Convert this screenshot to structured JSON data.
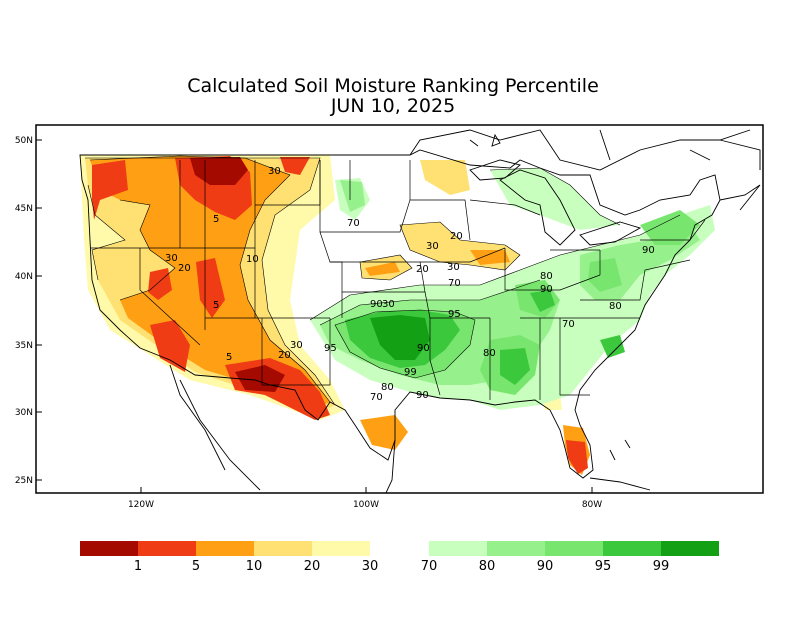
{
  "title_line1": "Calculated Soil Moisture Ranking Percentile",
  "title_line2": "JUN 10, 2025",
  "lat_ticks": [
    "50N",
    "45N",
    "40N",
    "35N",
    "30N",
    "25N"
  ],
  "lon_ticks": [
    "120W",
    "100W",
    "80W"
  ],
  "contour_labels": [
    "30",
    "5",
    "70",
    "30",
    "20",
    "30",
    "10",
    "20",
    "5",
    "30",
    "20",
    "70",
    "5",
    "90",
    "30",
    "95",
    "80",
    "90",
    "80",
    "90",
    "70",
    "30",
    "20",
    "95",
    "99",
    "80",
    "90",
    "70",
    "90",
    "80"
  ],
  "legend": {
    "dry_colors": [
      "#a50a00",
      "#f03c14",
      "#ffa014",
      "#ffe173",
      "#fffaaa"
    ],
    "wet_colors": [
      "#c8ffbe",
      "#96f08c",
      "#78e66e",
      "#3cc83c",
      "#14a014"
    ],
    "labels": [
      "1",
      "5",
      "10",
      "20",
      "30",
      "70",
      "80",
      "90",
      "95",
      "99"
    ]
  }
}
